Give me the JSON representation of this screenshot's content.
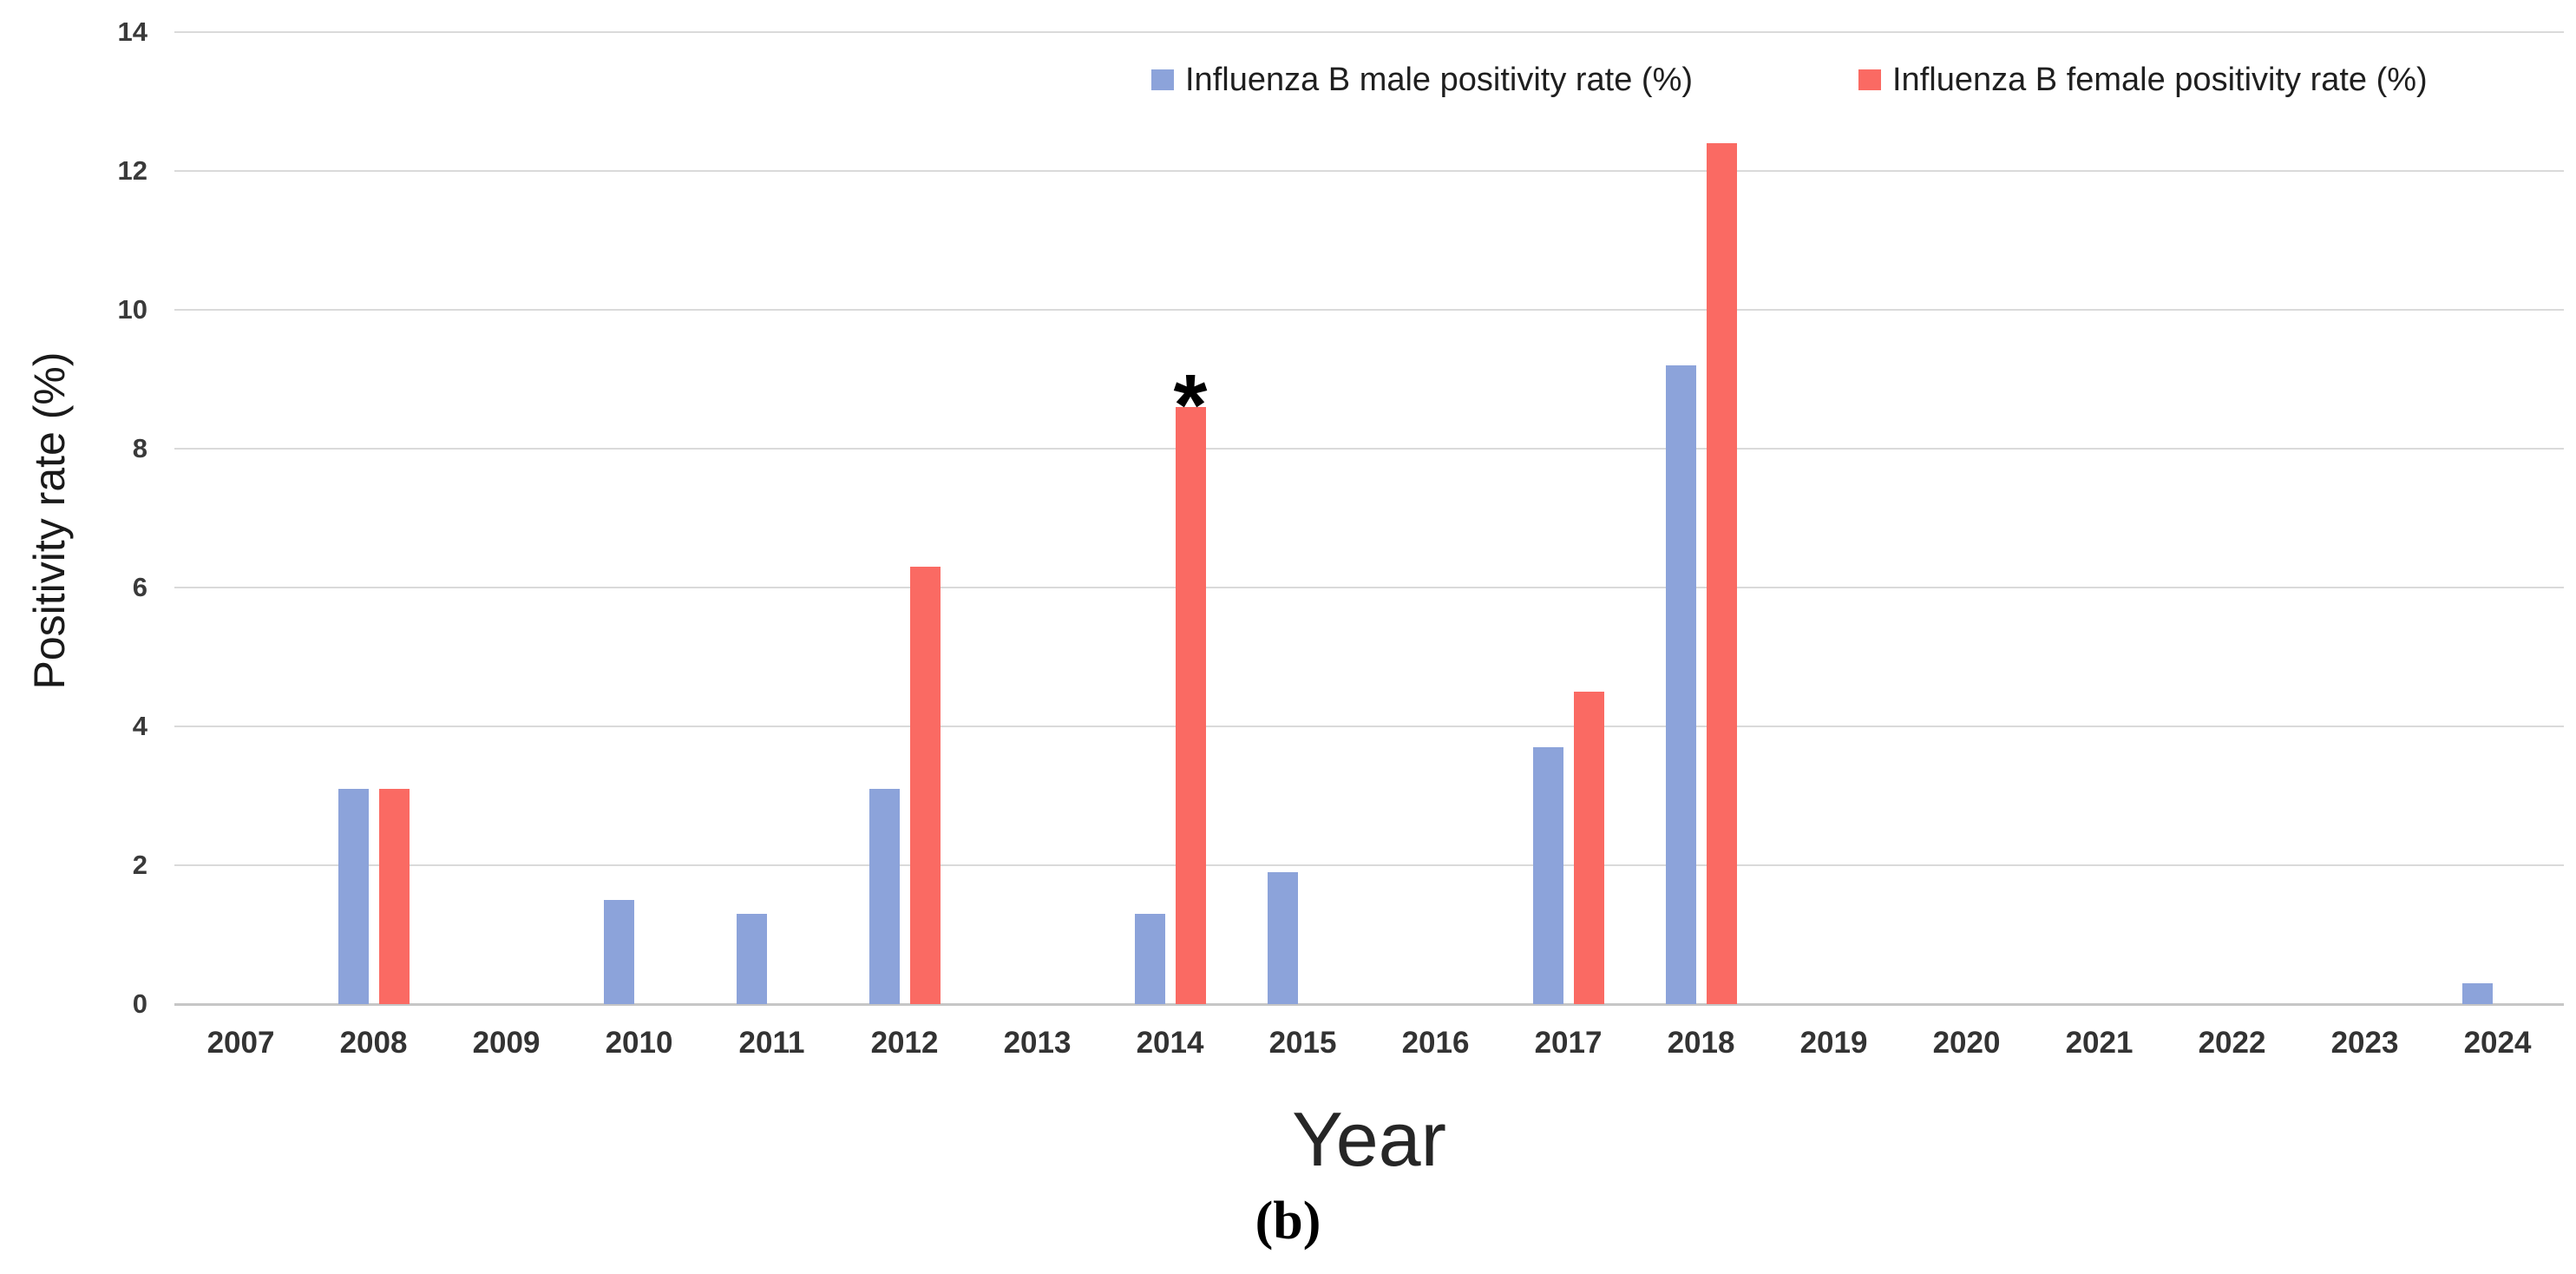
{
  "figure": {
    "panel_label": "(b)",
    "background": "#ffffff"
  },
  "axes": {
    "xlabel": "Year",
    "ylabel": "Positivity rate (%)",
    "yticks": [
      0,
      2,
      4,
      6,
      8,
      10,
      12,
      14
    ]
  },
  "chart_data": {
    "type": "bar",
    "title": "",
    "xlabel": "Year",
    "ylabel": "Positivity rate (%)",
    "categories": [
      "2007",
      "2008",
      "2009",
      "2010",
      "2011",
      "2012",
      "2013",
      "2014",
      "2015",
      "2016",
      "2017",
      "2018",
      "2019",
      "2020",
      "2021",
      "2022",
      "2023",
      "2024"
    ],
    "series": [
      {
        "key": "male",
        "name": "Influenza B male positivity rate (%)",
        "color": "#8CA3DA",
        "values": [
          0,
          3.1,
          0,
          1.5,
          1.3,
          3.1,
          0,
          1.3,
          1.9,
          0,
          3.7,
          9.2,
          0,
          0,
          0,
          0,
          0,
          0.3
        ]
      },
      {
        "key": "female",
        "name": "Influenza B female positivity rate (%)",
        "color": "#FA6A63",
        "values": [
          0,
          3.1,
          0,
          0,
          0,
          6.3,
          0,
          8.6,
          0,
          0,
          4.5,
          12.4,
          0,
          0,
          0,
          0,
          0,
          0
        ]
      }
    ],
    "ylim": [
      0,
      14
    ],
    "ytick_step": 2,
    "grid": true,
    "legend_position": "top",
    "annotations": [
      {
        "text": "*",
        "series": "female",
        "category": "2014",
        "value": 8.6
      }
    ]
  }
}
